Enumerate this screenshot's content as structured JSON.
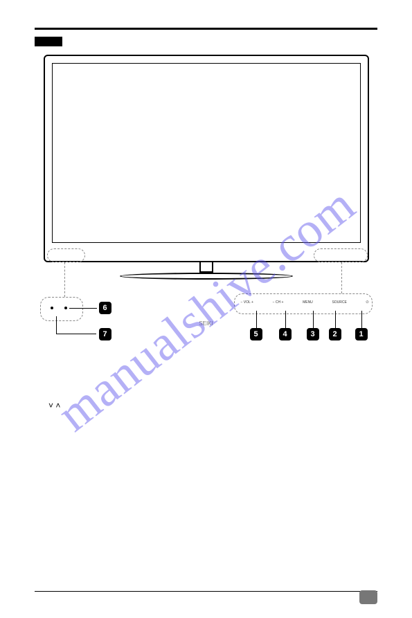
{
  "watermark": {
    "text": "manualshive.com",
    "color": "rgba(88,80,236,0.45)",
    "angle_deg": -38,
    "fontsize": 72
  },
  "tv": {
    "brand": "SEIKI"
  },
  "detail_right": {
    "labels": [
      "− VOL +",
      "− CH +",
      "MENU",
      "SOURCE",
      "⏻"
    ]
  },
  "badges": {
    "b1": "1",
    "b2": "2",
    "b3": "3",
    "b4": "4",
    "b5": "5",
    "b6": "6",
    "b7": "7"
  },
  "chevrons": "˅  ˄",
  "colors": {
    "rule": "#000000",
    "dash": "#888888",
    "badge_bg": "#000000",
    "badge_fg": "#ffffff",
    "page_badge": "#777777",
    "background": "#ffffff"
  }
}
